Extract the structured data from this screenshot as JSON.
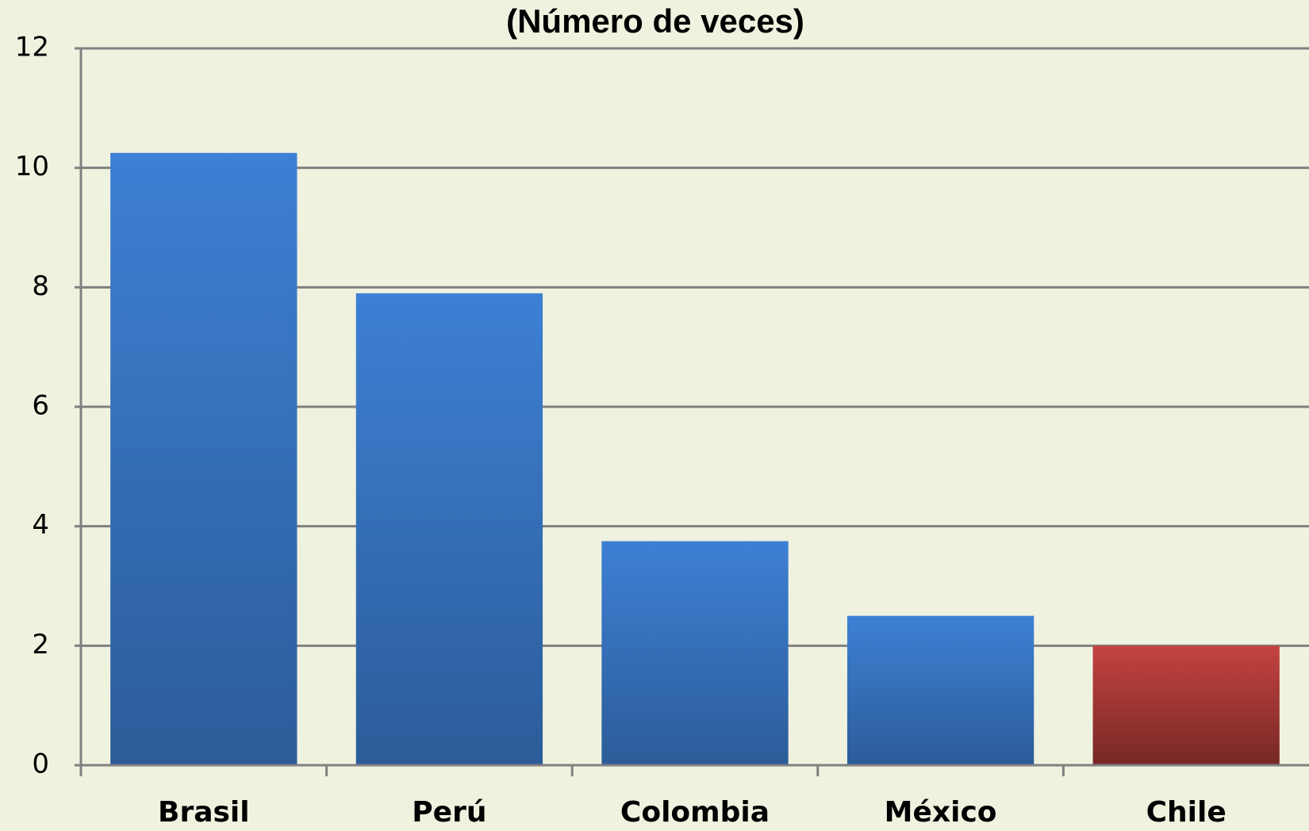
{
  "chart_data": {
    "type": "bar",
    "title": "(Número de veces)",
    "categories": [
      "Brasil",
      "Perú",
      "Colombia",
      "México",
      "Chile"
    ],
    "values": [
      10.25,
      7.9,
      3.75,
      2.5,
      2.0
    ],
    "colors": [
      "#3d80d4",
      "#3d80d4",
      "#3d80d4",
      "#3d80d4",
      "#c4433f"
    ],
    "ylim": [
      0,
      12
    ],
    "yticks": [
      0,
      2,
      4,
      6,
      8,
      10,
      12
    ],
    "grid": true
  }
}
